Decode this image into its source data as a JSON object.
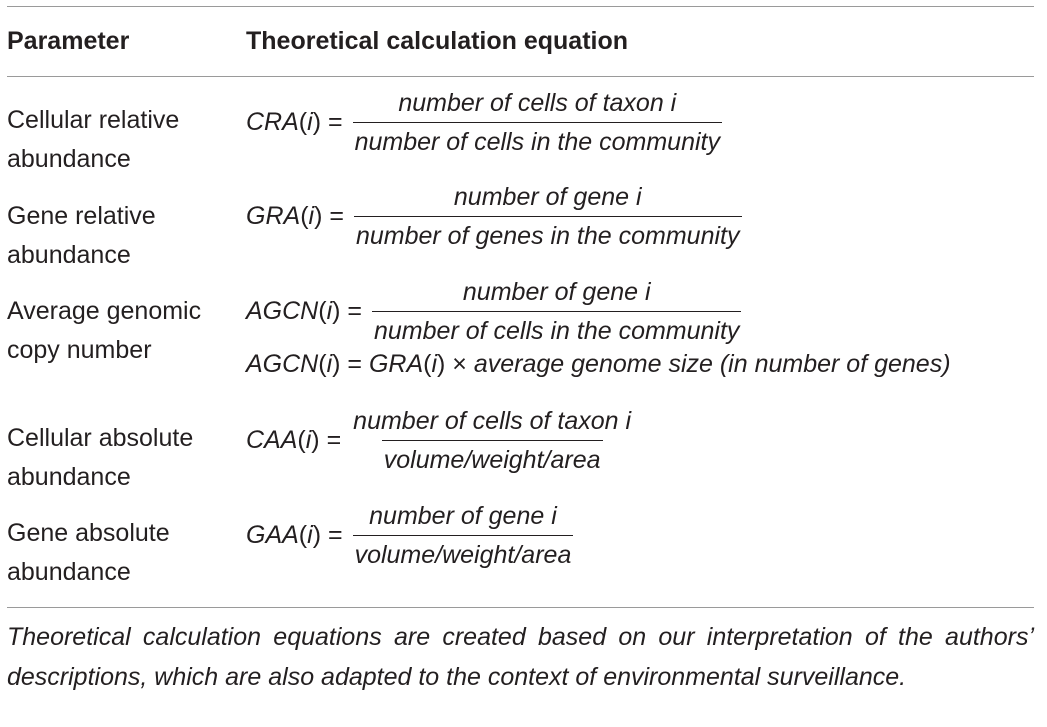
{
  "table": {
    "headers": {
      "parameter": "Parameter",
      "equation": "Theoretical calculation equation"
    },
    "rows": [
      {
        "parameter": "Cellular relative abundance",
        "lhs": "CRA",
        "numerator": "number of cells of taxon i",
        "denominator": "number of cells in the community"
      },
      {
        "parameter": "Gene relative abundance",
        "lhs": "GRA",
        "numerator": "number of gene i",
        "denominator": "number of genes in the community"
      },
      {
        "parameter": "Average genomic copy number",
        "lhs": "AGCN",
        "numerator": "number of gene i",
        "denominator": "number of cells in the community",
        "alt_lhs": "AGCN",
        "alt_rhs_fn": "GRA",
        "alt_rhs_rest": "average genome size (in number of genes)"
      },
      {
        "parameter": "Cellular absolute abundance",
        "lhs": "CAA",
        "numerator": "number of cells of taxon i",
        "denominator": "volume/weight/area"
      },
      {
        "parameter": "Gene absolute abundance",
        "lhs": "GAA",
        "numerator": "number of gene i",
        "denominator": "volume/weight/area"
      }
    ],
    "footnote": "Theoretical calculation equations are created based on our interpretation of the authors’ descriptions, which are also adapted to the context of environmental surveillance."
  }
}
